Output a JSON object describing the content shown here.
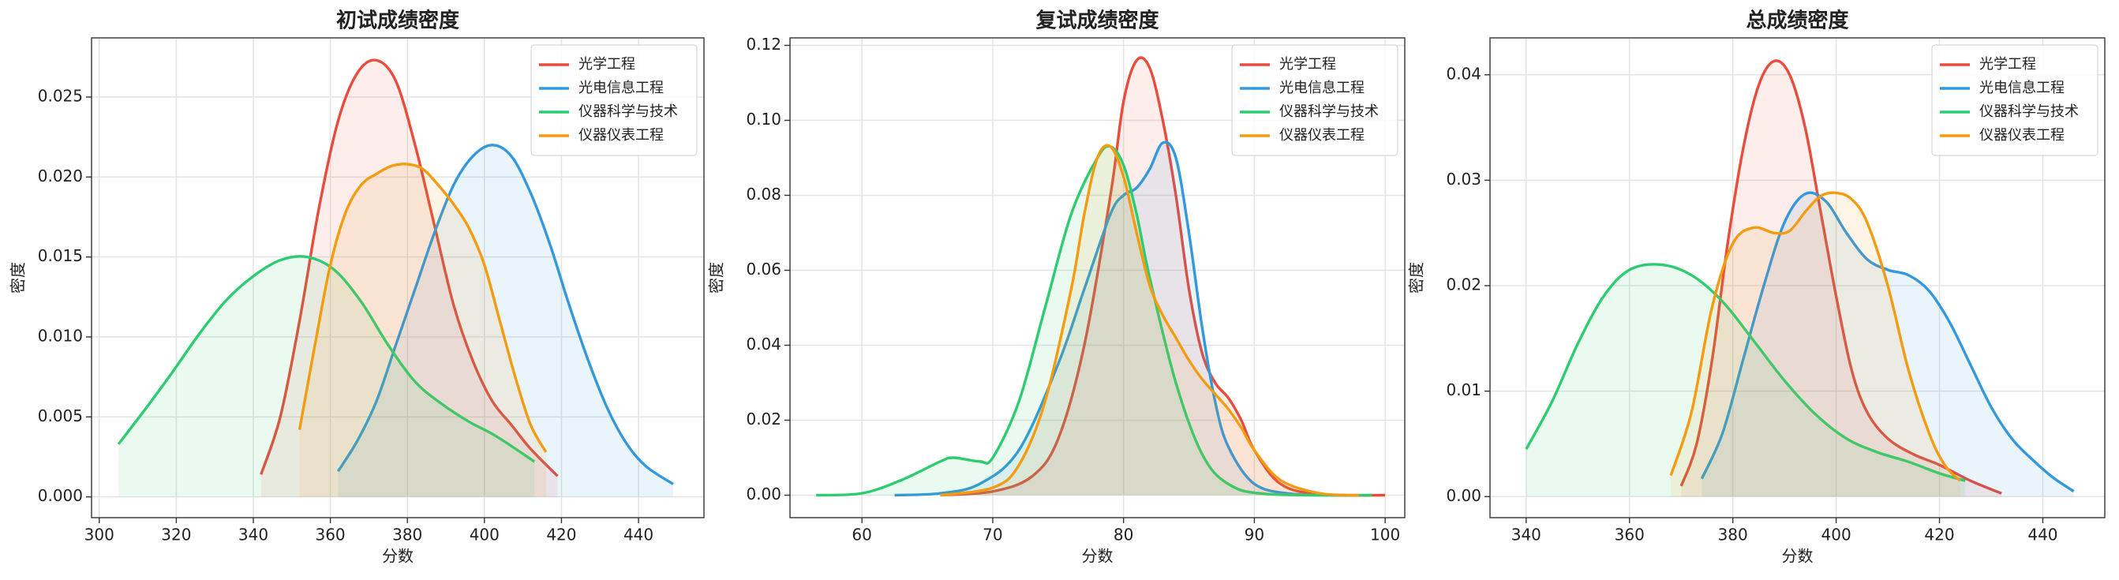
{
  "chart_data": [
    {
      "type": "line",
      "title": "初试成绩密度",
      "xlabel": "分数",
      "ylabel": "密度",
      "xlim": [
        298,
        457
      ],
      "ylim": [
        -0.0013,
        0.0287
      ],
      "xticks": [
        300,
        320,
        340,
        360,
        380,
        400,
        420,
        440
      ],
      "yticks": [
        {
          "value": 0,
          "label": "0.000"
        },
        {
          "value": 0.005,
          "label": "0.005"
        },
        {
          "value": 0.01,
          "label": "0.010"
        },
        {
          "value": 0.015,
          "label": "0.015"
        },
        {
          "value": 0.02,
          "label": "0.020"
        },
        {
          "value": 0.025,
          "label": "0.025"
        }
      ],
      "grid": true,
      "legend": "upper right",
      "fill": true,
      "series": [
        {
          "name": "光学工程",
          "color": "#e74c3c",
          "x": [
            342,
            347,
            352,
            357,
            362,
            367,
            372,
            377,
            382,
            387,
            392,
            397,
            402,
            407,
            412,
            419
          ],
          "values": [
            0.0014,
            0.005,
            0.011,
            0.018,
            0.0235,
            0.0265,
            0.0273,
            0.026,
            0.022,
            0.017,
            0.012,
            0.0085,
            0.006,
            0.0045,
            0.003,
            0.0013
          ]
        },
        {
          "name": "光电信息工程",
          "color": "#3498db",
          "x": [
            362,
            367,
            372,
            377,
            382,
            387,
            392,
            397,
            402,
            407,
            412,
            417,
            422,
            427,
            432,
            437,
            442,
            449
          ],
          "values": [
            0.0016,
            0.0035,
            0.006,
            0.0095,
            0.013,
            0.0165,
            0.0195,
            0.0213,
            0.022,
            0.0213,
            0.019,
            0.0158,
            0.012,
            0.0085,
            0.0055,
            0.0033,
            0.0019,
            0.0008
          ]
        },
        {
          "name": "仪器科学与技术",
          "color": "#2ecc71",
          "x": [
            305,
            312,
            319,
            326,
            333,
            340,
            347,
            354,
            361,
            368,
            375,
            382,
            389,
            396,
            403,
            413
          ],
          "values": [
            0.0033,
            0.0055,
            0.0078,
            0.0102,
            0.0123,
            0.0138,
            0.0148,
            0.015,
            0.0142,
            0.0122,
            0.0095,
            0.0072,
            0.0058,
            0.0047,
            0.0038,
            0.0022
          ]
        },
        {
          "name": "仪器仪表工程",
          "color": "#f39c12",
          "x": [
            352,
            356,
            360,
            364,
            368,
            372,
            376,
            380,
            384,
            388,
            392,
            396,
            400,
            404,
            408,
            412,
            416
          ],
          "values": [
            0.0042,
            0.0095,
            0.0145,
            0.0178,
            0.0195,
            0.0202,
            0.0207,
            0.0208,
            0.0205,
            0.0195,
            0.0183,
            0.0168,
            0.0145,
            0.011,
            0.0075,
            0.0045,
            0.0028
          ]
        }
      ]
    },
    {
      "type": "line",
      "title": "复试成绩密度",
      "xlabel": "分数",
      "ylabel": "密度",
      "xlim": [
        54.5,
        101.5
      ],
      "ylim": [
        -0.006,
        0.122
      ],
      "xticks": [
        60,
        70,
        80,
        90,
        100
      ],
      "yticks": [
        {
          "value": 0,
          "label": "0.00"
        },
        {
          "value": 0.02,
          "label": "0.02"
        },
        {
          "value": 0.04,
          "label": "0.04"
        },
        {
          "value": 0.06,
          "label": "0.06"
        },
        {
          "value": 0.08,
          "label": "0.08"
        },
        {
          "value": 0.1,
          "label": "0.10"
        },
        {
          "value": 0.12,
          "label": "0.12"
        }
      ],
      "grid": true,
      "legend": "upper right",
      "fill": true,
      "series": [
        {
          "name": "光学工程",
          "color": "#e74c3c",
          "x": [
            66,
            70,
            73,
            75,
            77,
            79,
            80,
            81,
            82,
            83,
            84,
            85,
            86,
            87,
            88,
            89,
            90,
            92,
            95,
            100
          ],
          "values": [
            0,
            0.001,
            0.005,
            0.015,
            0.04,
            0.08,
            0.105,
            0.116,
            0.114,
            0.1,
            0.08,
            0.055,
            0.038,
            0.03,
            0.026,
            0.02,
            0.012,
            0.003,
            0.0002,
            0
          ]
        },
        {
          "name": "光电信息工程",
          "color": "#3498db",
          "x": [
            62.5,
            66,
            69,
            72,
            75,
            77,
            79,
            80,
            81,
            82,
            83,
            84,
            85,
            86,
            87,
            88,
            90,
            93,
            97
          ],
          "values": [
            0,
            0.0005,
            0.003,
            0.012,
            0.035,
            0.055,
            0.075,
            0.08,
            0.082,
            0.087,
            0.094,
            0.09,
            0.07,
            0.045,
            0.025,
            0.013,
            0.003,
            0.0003,
            0
          ]
        },
        {
          "name": "仪器科学与技术",
          "color": "#2ecc71",
          "x": [
            56.5,
            60,
            63,
            66,
            67,
            69,
            70,
            72,
            74,
            76,
            78,
            79,
            80,
            81,
            82,
            84,
            86,
            88,
            91,
            99
          ],
          "values": [
            0,
            0.0005,
            0.004,
            0.009,
            0.01,
            0.009,
            0.01,
            0.025,
            0.05,
            0.075,
            0.09,
            0.093,
            0.088,
            0.075,
            0.058,
            0.03,
            0.011,
            0.003,
            0.0003,
            0
          ]
        },
        {
          "name": "仪器仪表工程",
          "color": "#f39c12",
          "x": [
            66,
            70,
            72,
            74,
            76,
            77,
            78,
            79,
            80,
            81,
            82,
            83,
            84,
            85,
            86,
            87,
            88,
            89,
            90,
            92,
            95,
            98
          ],
          "values": [
            0,
            0.002,
            0.008,
            0.025,
            0.055,
            0.075,
            0.09,
            0.093,
            0.085,
            0.07,
            0.056,
            0.048,
            0.042,
            0.036,
            0.031,
            0.027,
            0.023,
            0.018,
            0.012,
            0.004,
            0.0005,
            0
          ]
        }
      ]
    },
    {
      "type": "line",
      "title": "总成绩密度",
      "xlabel": "分数",
      "ylabel": "密度",
      "xlim": [
        333,
        452
      ],
      "ylim": [
        -0.002,
        0.0435
      ],
      "xticks": [
        340,
        360,
        380,
        400,
        420,
        440
      ],
      "yticks": [
        {
          "value": 0,
          "label": "0.00"
        },
        {
          "value": 0.01,
          "label": "0.01"
        },
        {
          "value": 0.02,
          "label": "0.02"
        },
        {
          "value": 0.03,
          "label": "0.03"
        },
        {
          "value": 0.04,
          "label": "0.04"
        }
      ],
      "grid": true,
      "legend": "upper right",
      "fill": true,
      "series": [
        {
          "name": "光学工程",
          "color": "#e74c3c",
          "x": [
            370,
            373,
            376,
            379,
            382,
            385,
            388,
            391,
            394,
            397,
            400,
            403,
            406,
            410,
            415,
            420,
            426,
            432
          ],
          "values": [
            0.001,
            0.005,
            0.013,
            0.024,
            0.033,
            0.039,
            0.0413,
            0.04,
            0.035,
            0.027,
            0.019,
            0.012,
            0.008,
            0.0055,
            0.004,
            0.003,
            0.0015,
            0.0003
          ]
        },
        {
          "name": "光电信息工程",
          "color": "#3498db",
          "x": [
            374,
            378,
            382,
            386,
            390,
            394,
            398,
            402,
            406,
            410,
            414,
            418,
            422,
            426,
            430,
            434,
            438,
            442,
            446
          ],
          "values": [
            0.0017,
            0.006,
            0.013,
            0.02,
            0.026,
            0.0287,
            0.028,
            0.025,
            0.0225,
            0.0215,
            0.021,
            0.0195,
            0.0165,
            0.0125,
            0.0085,
            0.0055,
            0.0035,
            0.0018,
            0.0005
          ]
        },
        {
          "name": "仪器科学与技术",
          "color": "#2ecc71",
          "x": [
            340,
            345,
            350,
            355,
            360,
            366,
            372,
            378,
            384,
            390,
            396,
            402,
            408,
            414,
            420,
            425
          ],
          "values": [
            0.0045,
            0.009,
            0.0145,
            0.019,
            0.0215,
            0.022,
            0.021,
            0.0185,
            0.0148,
            0.011,
            0.0078,
            0.0055,
            0.0042,
            0.0033,
            0.0022,
            0.0015
          ]
        },
        {
          "name": "仪器仪表工程",
          "color": "#f39c12",
          "x": [
            368,
            372,
            376,
            380,
            384,
            388,
            391,
            394,
            397,
            400,
            403,
            406,
            410,
            414,
            418,
            421,
            424
          ],
          "values": [
            0.002,
            0.008,
            0.018,
            0.024,
            0.0255,
            0.025,
            0.0252,
            0.027,
            0.0285,
            0.0288,
            0.0282,
            0.026,
            0.02,
            0.012,
            0.006,
            0.003,
            0.0015
          ]
        }
      ]
    }
  ]
}
